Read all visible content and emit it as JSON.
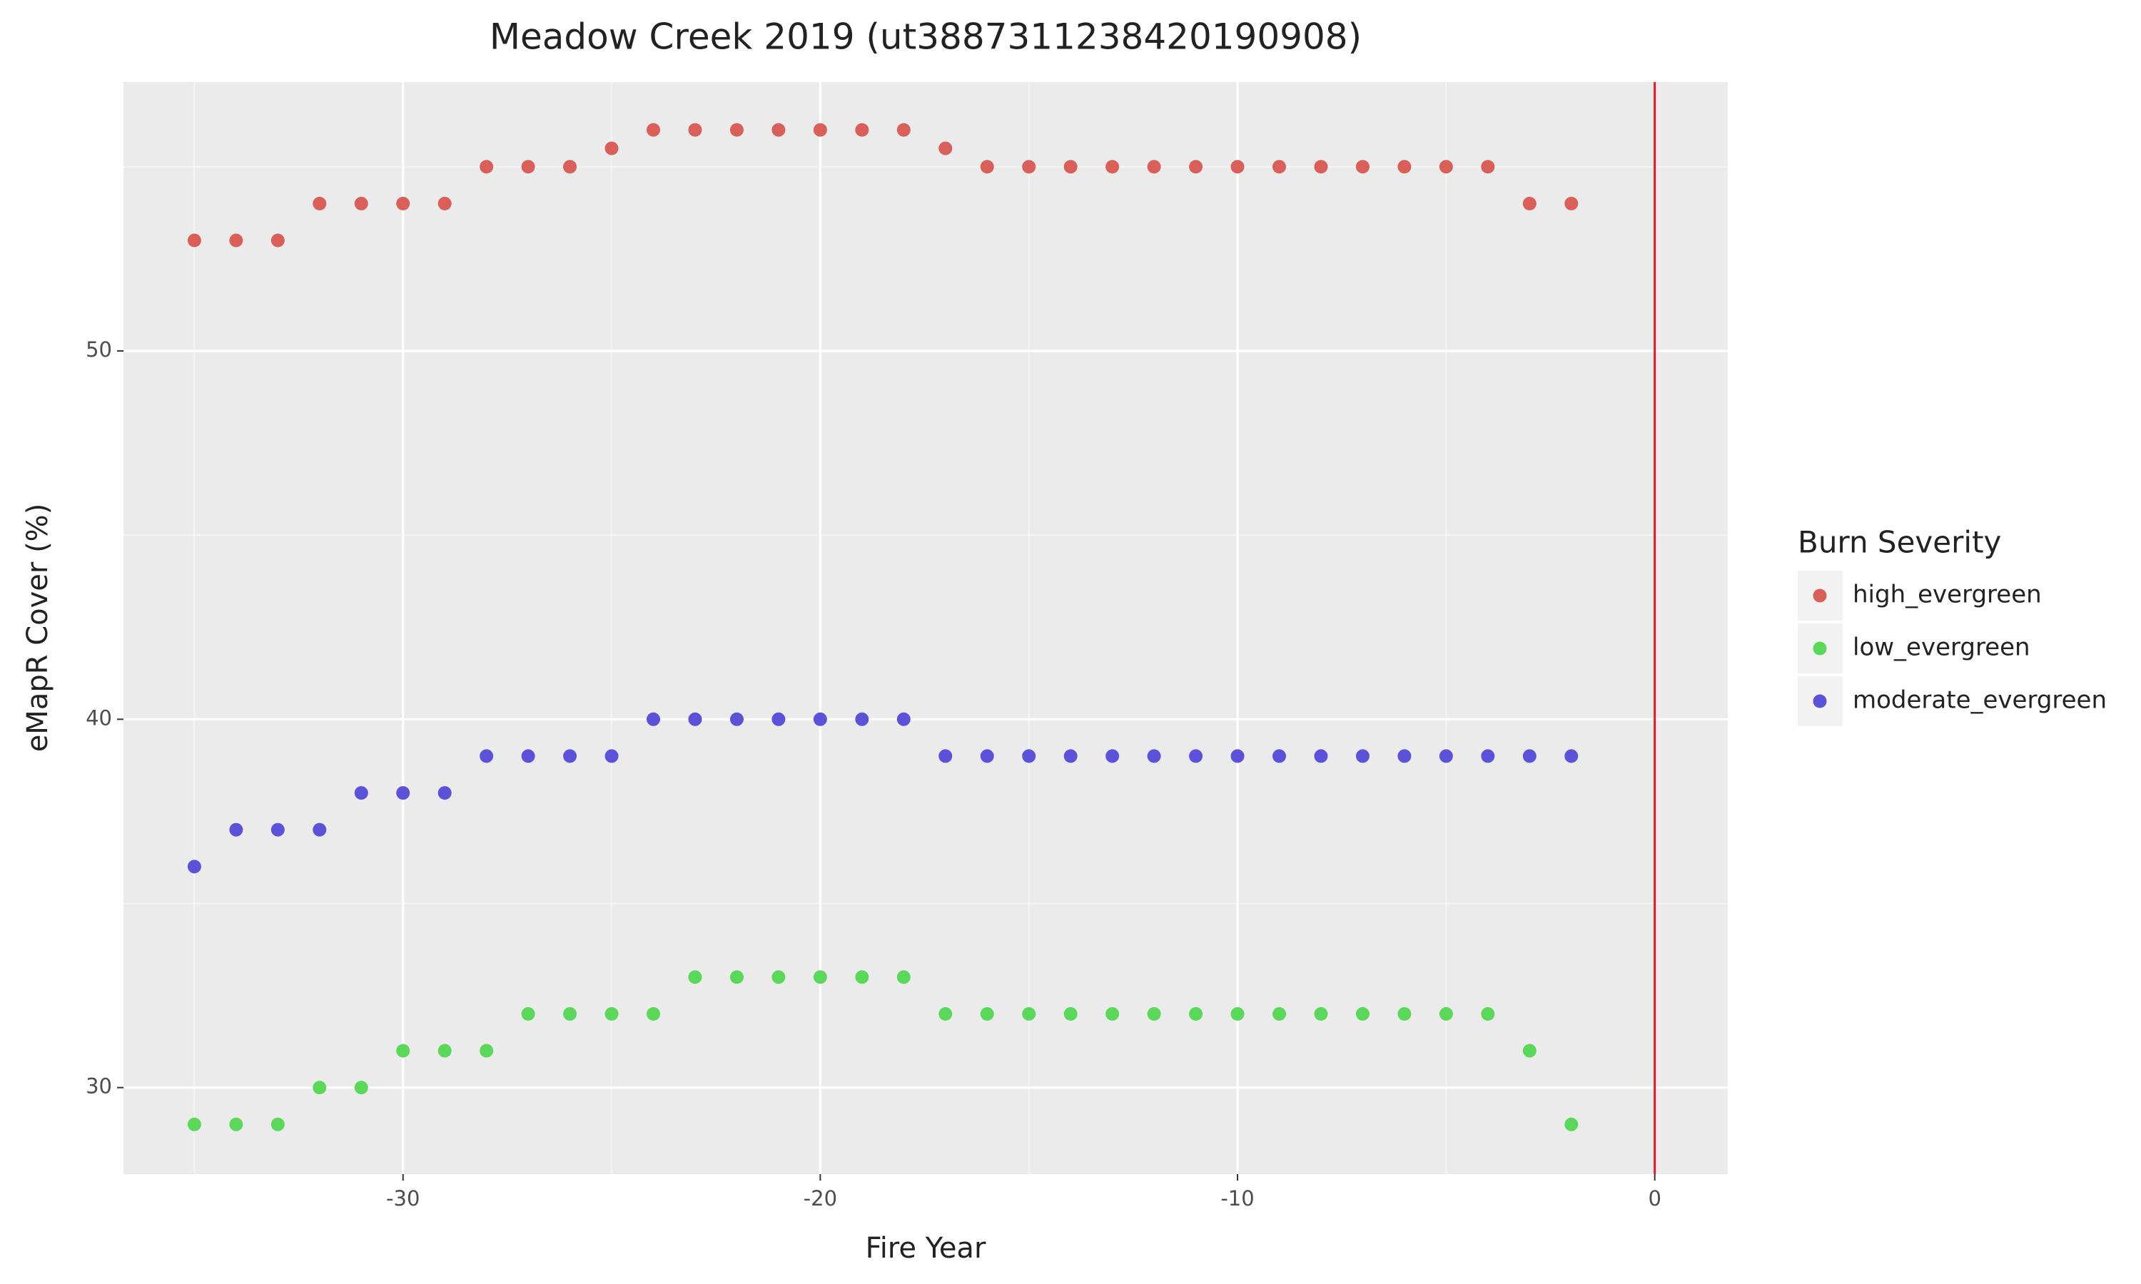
{
  "chart_data": {
    "type": "scatter",
    "title": "Meadow Creek 2019 (ut3887311238420190908)",
    "x_label": "Fire Year",
    "y_label": "eMapR Cover (%)",
    "legend_title": "Burn Severity",
    "legend_position": "right",
    "x": [
      -35,
      -34,
      -33,
      -32,
      -31,
      -30,
      -29,
      -28,
      -27,
      -26,
      -25,
      -24,
      -23,
      -22,
      -21,
      -20,
      -19,
      -18,
      -17,
      -16,
      -15,
      -14,
      -13,
      -12,
      -11,
      -10,
      -9,
      -8,
      -7,
      -6,
      -5,
      -4,
      -3,
      -2
    ],
    "series": [
      {
        "name": "high_evergreen",
        "color": "#d95f58",
        "values": [
          53,
          53,
          53,
          54,
          54,
          54,
          54,
          55,
          55,
          55,
          55.5,
          56,
          56,
          56,
          56,
          56,
          56,
          56,
          55.5,
          55,
          55,
          55,
          55,
          55,
          55,
          55,
          55,
          55,
          55,
          55,
          55,
          55,
          54,
          54
        ]
      },
      {
        "name": "low_evergreen",
        "color": "#5ad85a",
        "values": [
          29,
          29,
          29,
          30,
          30,
          31,
          31,
          31,
          32,
          32,
          32,
          32,
          33,
          33,
          33,
          33,
          33,
          33,
          32,
          32,
          32,
          32,
          32,
          32,
          32,
          32,
          32,
          32,
          32,
          32,
          32,
          32,
          31,
          29
        ]
      },
      {
        "name": "moderate_evergreen",
        "color": "#5c52d9",
        "values": [
          36,
          37,
          37,
          37,
          38,
          38,
          38,
          39,
          39,
          39,
          39,
          40,
          40,
          40,
          40,
          40,
          40,
          40,
          39,
          39,
          39,
          39,
          39,
          39,
          39,
          39,
          39,
          39,
          39,
          39,
          39,
          39,
          39,
          39
        ]
      }
    ],
    "xlim": [
      -36.7,
      1.75
    ],
    "ylim": [
      27.65,
      57.3
    ],
    "xticks": [
      -30,
      -20,
      -10,
      0
    ],
    "yticks": [
      30,
      40,
      50
    ],
    "grid": true,
    "vline": 0,
    "vline_color": "#e8141c"
  }
}
